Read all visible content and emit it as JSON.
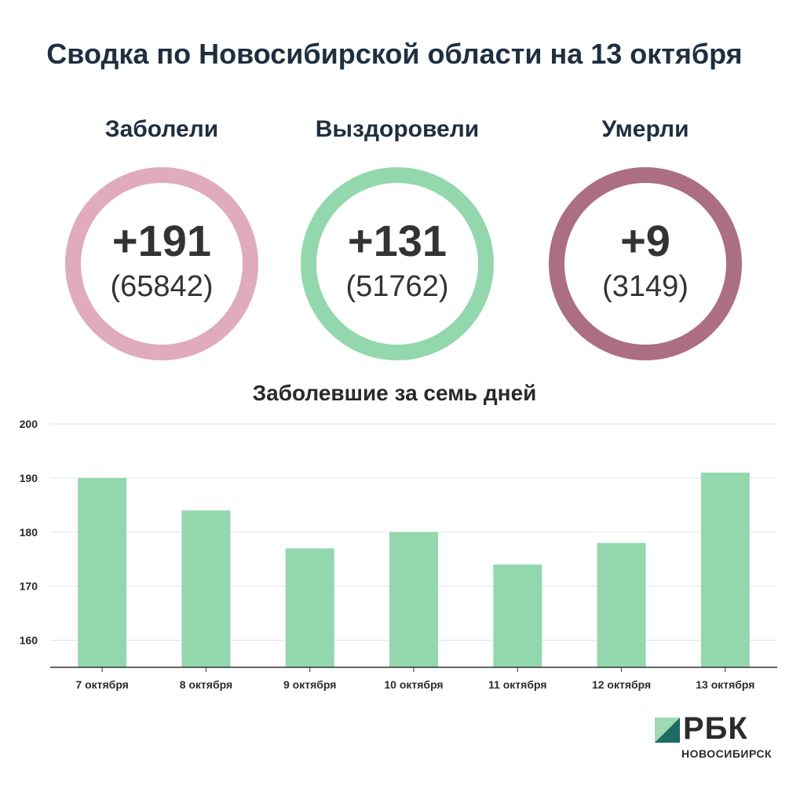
{
  "title": "Сводка по Новосибирской области на 13 октября",
  "stats": [
    {
      "label": "Заболели",
      "delta": "+191",
      "total": "(65842)",
      "color": "#dfabbd"
    },
    {
      "label": "Выздоровели",
      "delta": "+131",
      "total": "(51762)",
      "color": "#93d7ad"
    },
    {
      "label": "Умерли",
      "delta": "+9",
      "total": "(3149)",
      "color": "#ab6e82"
    }
  ],
  "chart_data": {
    "type": "bar",
    "title": "Заболевшие за семь дней",
    "categories": [
      "7 октября",
      "8 октября",
      "9 октября",
      "10 октября",
      "11 октября",
      "12 октября",
      "13 октября"
    ],
    "values": [
      190,
      184,
      177,
      180,
      174,
      178,
      191
    ],
    "ylim": [
      155,
      200
    ],
    "yticks": [
      160,
      170,
      180,
      190,
      200
    ],
    "grid": true,
    "bar_color": "#93d7ad"
  },
  "logo": {
    "name": "РБК",
    "subtitle": "НОВОСИБИРСК",
    "colors": [
      "#9fd8b5",
      "#1e6b63"
    ]
  }
}
